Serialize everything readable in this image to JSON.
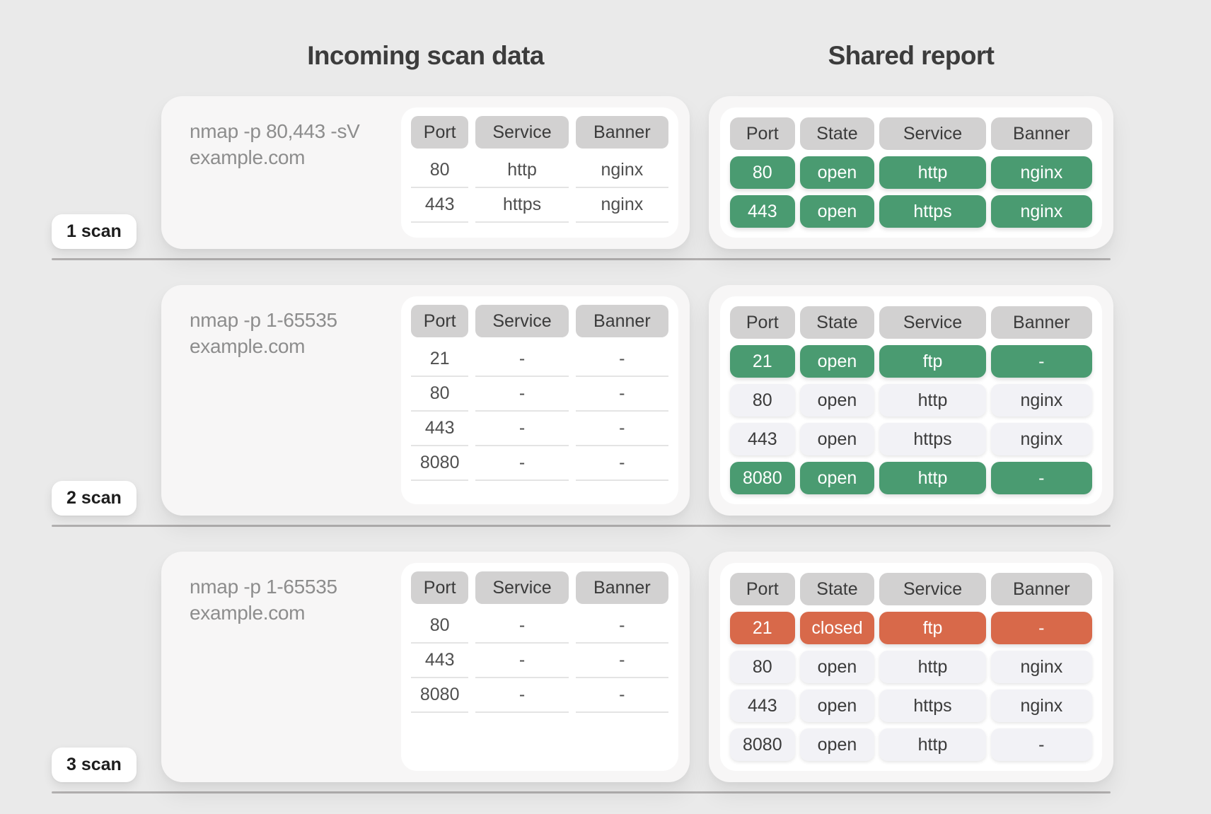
{
  "titles": {
    "left": "Incoming scan data",
    "right": "Shared report"
  },
  "colors": {
    "background": "#eaeaea",
    "card": "#f7f6f6",
    "header_chip": "#d2d1d1",
    "light_chip": "#f2f2f6",
    "green": "#4a9b71",
    "orange": "#d8694a",
    "separator": "#b1afaf"
  },
  "incoming_headers": [
    "Port",
    "Service",
    "Banner"
  ],
  "report_headers": [
    "Port",
    "State",
    "Service",
    "Banner"
  ],
  "scans": [
    {
      "badge": "1 scan",
      "command_lines": [
        "nmap -p 80,443 -sV",
        "example.com"
      ],
      "incoming_rows": [
        [
          "80",
          "http",
          "nginx"
        ],
        [
          "443",
          "https",
          "nginx"
        ]
      ],
      "report_rows": [
        {
          "variant": "green",
          "cells": [
            "80",
            "open",
            "http",
            "nginx"
          ]
        },
        {
          "variant": "green",
          "cells": [
            "443",
            "open",
            "https",
            "nginx"
          ]
        }
      ]
    },
    {
      "badge": "2 scan",
      "command_lines": [
        "nmap -p 1-65535",
        "example.com"
      ],
      "incoming_rows": [
        [
          "21",
          "-",
          "-"
        ],
        [
          "80",
          "-",
          "-"
        ],
        [
          "443",
          "-",
          "-"
        ],
        [
          "8080",
          "-",
          "-"
        ]
      ],
      "report_rows": [
        {
          "variant": "green",
          "cells": [
            "21",
            "open",
            "ftp",
            "-"
          ]
        },
        {
          "variant": "light",
          "cells": [
            "80",
            "open",
            "http",
            "nginx"
          ]
        },
        {
          "variant": "light",
          "cells": [
            "443",
            "open",
            "https",
            "nginx"
          ]
        },
        {
          "variant": "green",
          "cells": [
            "8080",
            "open",
            "http",
            "-"
          ]
        }
      ]
    },
    {
      "badge": "3 scan",
      "command_lines": [
        "nmap -p 1-65535",
        "example.com"
      ],
      "incoming_rows": [
        [
          "80",
          "-",
          "-"
        ],
        [
          "443",
          "-",
          "-"
        ],
        [
          "8080",
          "-",
          "-"
        ]
      ],
      "report_rows": [
        {
          "variant": "orange",
          "cells": [
            "21",
            "closed",
            "ftp",
            "-"
          ]
        },
        {
          "variant": "light",
          "cells": [
            "80",
            "open",
            "http",
            "nginx"
          ]
        },
        {
          "variant": "light",
          "cells": [
            "443",
            "open",
            "https",
            "nginx"
          ]
        },
        {
          "variant": "light",
          "cells": [
            "8080",
            "open",
            "http",
            "-"
          ]
        }
      ]
    }
  ]
}
